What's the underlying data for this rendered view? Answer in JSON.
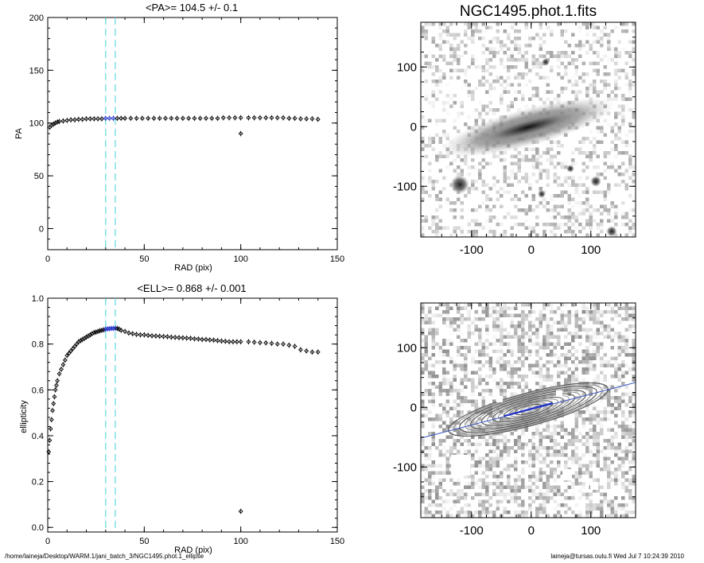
{
  "footer": {
    "path": "/home/laineja/Desktop/WARM.1/jani_batch_3/NGC1495.phot.1_ellipse",
    "stamp": "laineja@tursas.oulu.fi  Wed Jul  7 10:24:39 2010"
  },
  "images": {
    "top_title": "NGC1495.phot.1.fits",
    "ticks": [
      "-100",
      "0",
      "100"
    ],
    "tick_values": [
      -100,
      0,
      100
    ],
    "range": [
      -185,
      175
    ]
  },
  "chart_data": [
    {
      "type": "scatter",
      "title": "<PA>= 104.5 +/-   0.1",
      "xlabel": "RAD (pix)",
      "ylabel": "PA",
      "xlim": [
        0,
        150
      ],
      "ylim": [
        -20,
        200
      ],
      "xticks": [
        "0",
        "50",
        "100",
        "150"
      ],
      "yticks": [
        "0",
        "50",
        "100",
        "150",
        "200"
      ],
      "vlines": [
        30,
        35
      ],
      "highlight_range": [
        30,
        35
      ],
      "colors": {
        "points": "#000000",
        "highlight": "#1f2fc8",
        "vlines": "#5fd8e0"
      },
      "x": [
        1,
        2,
        3,
        4,
        5,
        6,
        8,
        10,
        12,
        14,
        16,
        18,
        20,
        22,
        24,
        26,
        28,
        30,
        32,
        34,
        36,
        38,
        40,
        43,
        46,
        49,
        52,
        55,
        58,
        61,
        64,
        67,
        70,
        73,
        76,
        79,
        82,
        85,
        88,
        91,
        94,
        97,
        100,
        100,
        104,
        107,
        110,
        113,
        116,
        119,
        122,
        125,
        128,
        131,
        134,
        137,
        140
      ],
      "y": [
        96,
        98,
        99,
        100,
        101,
        101.5,
        102,
        102.5,
        103,
        103,
        103.5,
        103.5,
        104,
        104,
        104,
        104,
        104,
        104.5,
        104.5,
        104.5,
        104.5,
        104.5,
        104.5,
        104.5,
        104.5,
        104.5,
        104.5,
        104.5,
        104.5,
        104.5,
        104.5,
        104.5,
        104.5,
        104.5,
        104.5,
        104.5,
        104.5,
        104.5,
        104.5,
        105,
        105,
        105,
        105,
        90,
        105,
        105,
        105,
        105,
        105,
        105,
        105,
        104.5,
        104.5,
        104,
        104,
        104,
        103.5
      ]
    },
    {
      "type": "scatter",
      "title": "<ELL>= 0.868 +/-  0.001",
      "xlabel": "RAD (pix)",
      "ylabel": "ellipticity",
      "xlim": [
        0,
        150
      ],
      "ylim": [
        -0.02,
        1.0
      ],
      "xticks": [
        "0",
        "50",
        "100",
        "150"
      ],
      "yticks": [
        "0.0",
        "0.2",
        "0.4",
        "0.6",
        "0.8",
        "1.0"
      ],
      "vlines": [
        30,
        35
      ],
      "highlight_range": [
        30,
        35
      ],
      "colors": {
        "points": "#000000",
        "highlight": "#1f2fc8",
        "vlines": "#5fd8e0"
      },
      "x": [
        0.5,
        1,
        1.5,
        2,
        2.5,
        3,
        3.5,
        4,
        4.5,
        5,
        6,
        7,
        8,
        9,
        10,
        11,
        12,
        13,
        14,
        15,
        16,
        17,
        18,
        19,
        20,
        21,
        22,
        23,
        24,
        25,
        26,
        27,
        28,
        29,
        30,
        31,
        32,
        33,
        34,
        35,
        36,
        37,
        38,
        40,
        42,
        44,
        46,
        48,
        50,
        52,
        54,
        56,
        58,
        60,
        62,
        64,
        66,
        68,
        70,
        72,
        74,
        76,
        78,
        80,
        82,
        84,
        86,
        88,
        90,
        92,
        94,
        96,
        98,
        100,
        100,
        104,
        107,
        110,
        113,
        116,
        119,
        122,
        125,
        128,
        131,
        134,
        137,
        140
      ],
      "y": [
        0.33,
        0.38,
        0.43,
        0.47,
        0.51,
        0.54,
        0.57,
        0.6,
        0.62,
        0.64,
        0.67,
        0.69,
        0.71,
        0.73,
        0.75,
        0.76,
        0.77,
        0.78,
        0.79,
        0.8,
        0.81,
        0.815,
        0.82,
        0.825,
        0.83,
        0.835,
        0.84,
        0.845,
        0.85,
        0.852,
        0.855,
        0.858,
        0.86,
        0.862,
        0.865,
        0.866,
        0.867,
        0.868,
        0.868,
        0.869,
        0.868,
        0.865,
        0.86,
        0.855,
        0.848,
        0.845,
        0.842,
        0.84,
        0.84,
        0.838,
        0.836,
        0.835,
        0.834,
        0.833,
        0.832,
        0.83,
        0.829,
        0.828,
        0.827,
        0.826,
        0.825,
        0.823,
        0.822,
        0.82,
        0.82,
        0.818,
        0.817,
        0.815,
        0.813,
        0.812,
        0.81,
        0.81,
        0.81,
        0.81,
        0.07,
        0.81,
        0.808,
        0.806,
        0.805,
        0.803,
        0.8,
        0.8,
        0.795,
        0.79,
        0.775,
        0.77,
        0.765,
        0.765
      ]
    }
  ]
}
